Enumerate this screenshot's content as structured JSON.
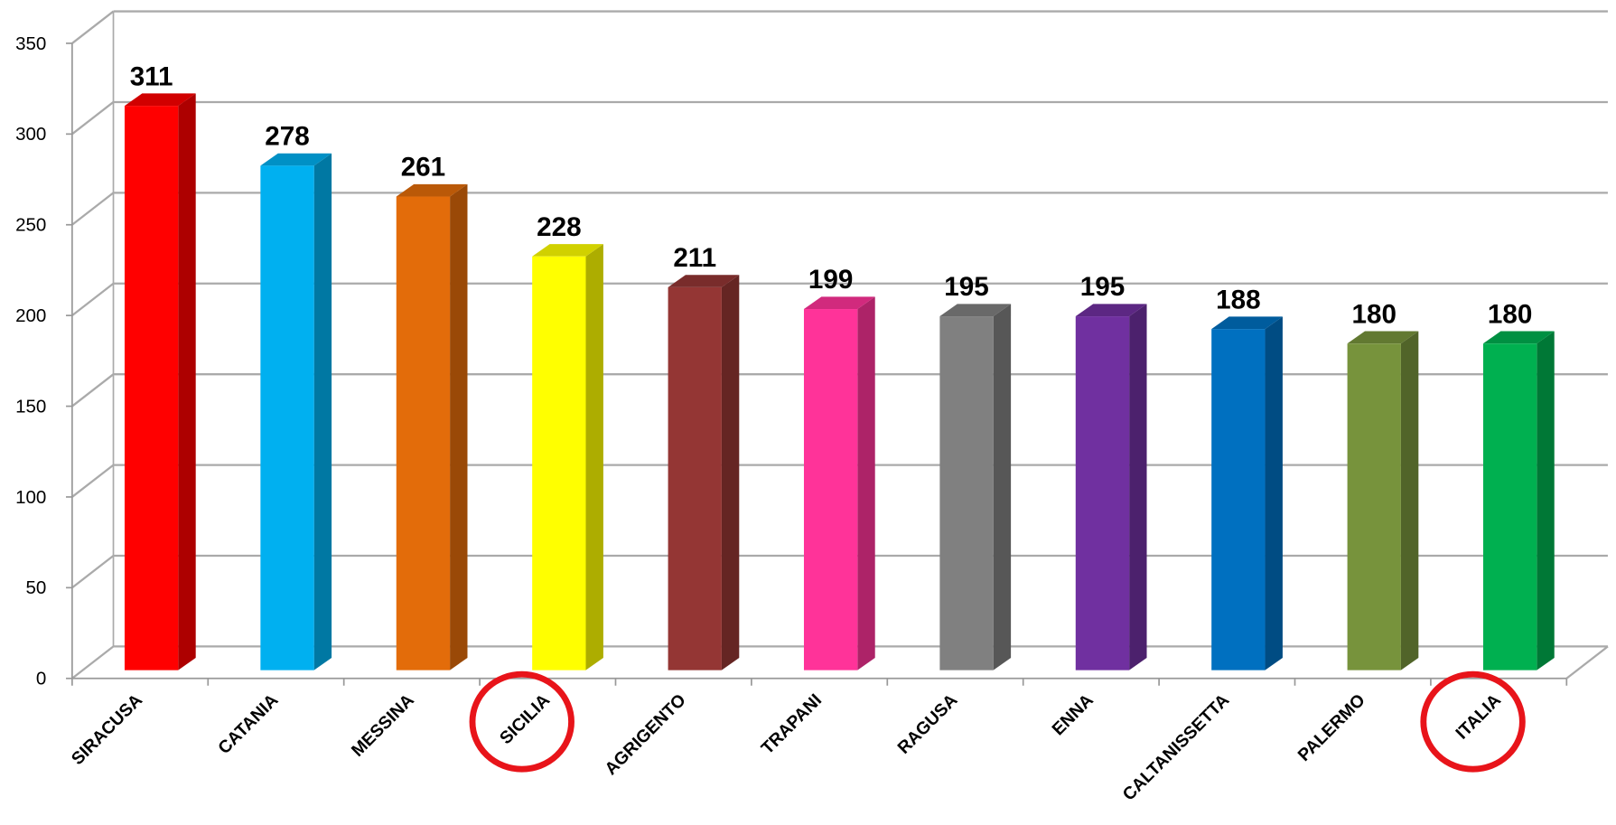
{
  "chart_data": {
    "type": "bar",
    "categories": [
      "SIRACUSA",
      "CATANIA",
      "MESSINA",
      "SICILIA",
      "AGRIGENTO",
      "TRAPANI",
      "RAGUSA",
      "ENNA",
      "CALTANISSETTA",
      "PALERMO",
      "ITALIA"
    ],
    "values": [
      311,
      278,
      261,
      228,
      211,
      199,
      195,
      195,
      188,
      180,
      180
    ],
    "colors": [
      "#ff0000",
      "#00b0f0",
      "#e36c0a",
      "#ffff00",
      "#943634",
      "#ff3399",
      "#808080",
      "#7030a0",
      "#0070c0",
      "#77933c",
      "#00b050"
    ],
    "ylim": [
      0,
      350
    ],
    "yticks": [
      0,
      50,
      100,
      150,
      200,
      250,
      300,
      350
    ],
    "grid": true
  }
}
